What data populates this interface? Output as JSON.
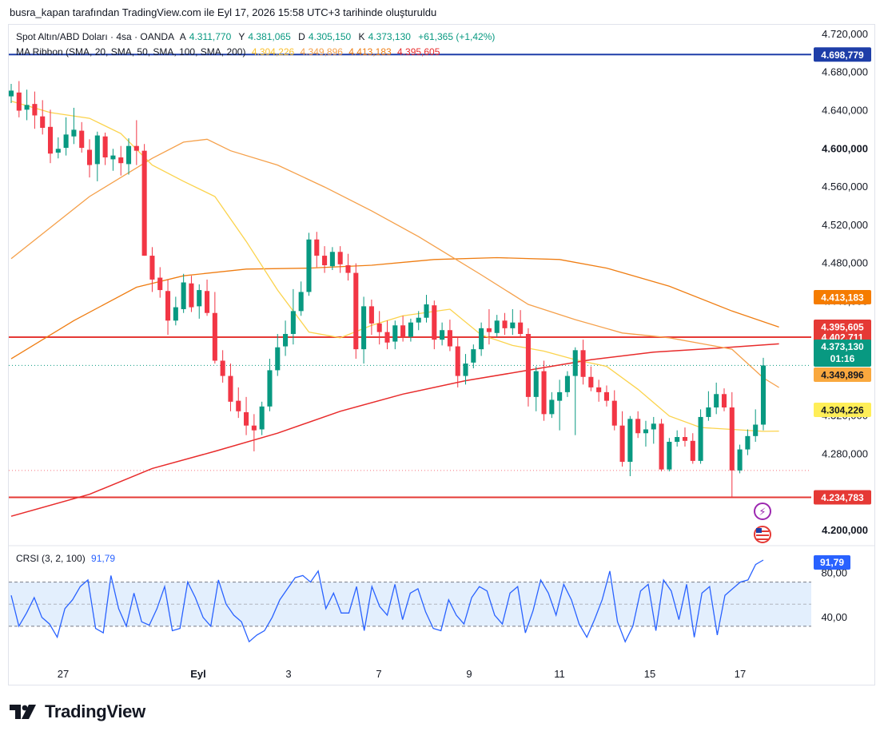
{
  "caption": "busra_kapan tarafından TradingView.com ile Eyl 17, 2026 15:58 UTC+3 tarihinde oluşturuldu",
  "legend": {
    "symbol": "Spot Altın/ABD Doları · 4sa · OANDA",
    "open_label": "A",
    "open": "4.311,770",
    "high_label": "Y",
    "high": "4.381,065",
    "low_label": "D",
    "low": "4.305,150",
    "close_label": "K",
    "close": "4.373,130",
    "change": "+61,365 (+1,42%)",
    "ma_label": "MA Ribbon (SMA, 20, SMA, 50, SMA, 100, SMA, 200)",
    "ma_values": [
      "4.304,226",
      "4.349,896",
      "4.413,183",
      "4.395,605"
    ]
  },
  "indicator": {
    "label": "CRSI (3, 2, 100)",
    "value": "91,79"
  },
  "branding": {
    "name": "TradingView"
  },
  "colors": {
    "up": "#089981",
    "down": "#f23645",
    "sma20": "#fbd34c",
    "sma50": "#f5a04a",
    "sma100": "#ef7d12",
    "sma200": "#e82b2b",
    "hline_blue": "#1e3ea8",
    "hline_red": "#e53935",
    "crsi": "#2962ff",
    "crsi_band": "#e3effd"
  },
  "chart_data": {
    "type": "candlestick",
    "y_axis": {
      "ticks": [
        "4.720,000",
        "4.680,000",
        "4.640,000",
        "4.600,000",
        "4.560,000",
        "4.520,000",
        "4.480,000",
        "4.440,000",
        "4.320,000",
        "4.280,000",
        "4.200,000"
      ],
      "bold_ticks": [
        "4.600,000",
        "4.200,000"
      ],
      "range": [
        4185,
        4730
      ]
    },
    "x_axis": {
      "ticks": [
        "27",
        "Eyl",
        "3",
        "7",
        "9",
        "11",
        "15",
        "17"
      ]
    },
    "horizontal_lines": [
      {
        "value": 4698.779,
        "label": "4.698,779",
        "color": "#1e3ea8"
      },
      {
        "value": 4402.711,
        "label": "4.402,711",
        "color": "#e53935"
      },
      {
        "value": 4234.783,
        "label": "4.234,783",
        "color": "#e53935"
      }
    ],
    "price_labels": [
      {
        "value": 4413.183,
        "label": "4.413,183",
        "bg": "#f57c00",
        "fg": "#ffffff"
      },
      {
        "value": 4395.605,
        "label": "4.395,605",
        "bg": "#e53935",
        "fg": "#ffffff"
      },
      {
        "value": 4373.13,
        "label": "4.373,130",
        "sub": "01:16",
        "bg": "#089981",
        "fg": "#ffffff"
      },
      {
        "value": 4349.896,
        "label": "4.349,896",
        "bg": "#f9a83e",
        "fg": "#131722"
      },
      {
        "value": 4304.226,
        "label": "4.304,226",
        "bg": "#ffee58",
        "fg": "#131722"
      }
    ],
    "candles": [
      [
        4655,
        4668,
        4648,
        4661
      ],
      [
        4659,
        4671,
        4633,
        4640
      ],
      [
        4641,
        4662,
        4630,
        4646
      ],
      [
        4647,
        4660,
        4621,
        4635
      ],
      [
        4634,
        4651,
        4615,
        4622
      ],
      [
        4623,
        4641,
        4585,
        4595
      ],
      [
        4596,
        4612,
        4590,
        4600
      ],
      [
        4601,
        4633,
        4593,
        4615
      ],
      [
        4613,
        4643,
        4605,
        4620
      ],
      [
        4619,
        4628,
        4596,
        4601
      ],
      [
        4599,
        4610,
        4570,
        4583
      ],
      [
        4584,
        4618,
        4566,
        4614
      ],
      [
        4613,
        4617,
        4583,
        4591
      ],
      [
        4589,
        4600,
        4577,
        4593
      ],
      [
        4591,
        4603,
        4572,
        4585
      ],
      [
        4584,
        4611,
        4573,
        4603
      ],
      [
        4603,
        4630,
        4583,
        4598
      ],
      [
        4598,
        4605,
        4488,
        4488
      ],
      [
        4488,
        4497,
        4450,
        4463
      ],
      [
        4465,
        4476,
        4444,
        4452
      ],
      [
        4451,
        4463,
        4405,
        4420
      ],
      [
        4420,
        4445,
        4415,
        4434
      ],
      [
        4432,
        4469,
        4428,
        4460
      ],
      [
        4459,
        4467,
        4429,
        4434
      ],
      [
        4435,
        4458,
        4422,
        4452
      ],
      [
        4451,
        4463,
        4425,
        4428
      ],
      [
        4428,
        4450,
        4375,
        4378
      ],
      [
        4378,
        4389,
        4355,
        4362
      ],
      [
        4362,
        4375,
        4325,
        4335
      ],
      [
        4336,
        4350,
        4318,
        4325
      ],
      [
        4324,
        4340,
        4300,
        4310
      ],
      [
        4310,
        4322,
        4283,
        4305
      ],
      [
        4306,
        4335,
        4300,
        4330
      ],
      [
        4330,
        4380,
        4325,
        4368
      ],
      [
        4368,
        4406,
        4362,
        4392
      ],
      [
        4393,
        4420,
        4383,
        4406
      ],
      [
        4406,
        4453,
        4395,
        4430
      ],
      [
        4430,
        4461,
        4425,
        4450
      ],
      [
        4450,
        4512,
        4446,
        4505
      ],
      [
        4505,
        4513,
        4476,
        4488
      ],
      [
        4488,
        4498,
        4470,
        4478
      ],
      [
        4477,
        4497,
        4473,
        4492
      ],
      [
        4492,
        4498,
        4470,
        4479
      ],
      [
        4478,
        4490,
        4462,
        4470
      ],
      [
        4470,
        4480,
        4380,
        4390
      ],
      [
        4390,
        4445,
        4375,
        4435
      ],
      [
        4435,
        4442,
        4405,
        4417
      ],
      [
        4417,
        4430,
        4395,
        4408
      ],
      [
        4408,
        4420,
        4390,
        4397
      ],
      [
        4398,
        4420,
        4390,
        4415
      ],
      [
        4415,
        4425,
        4398,
        4403
      ],
      [
        4403,
        4422,
        4398,
        4418
      ],
      [
        4418,
        4430,
        4410,
        4423
      ],
      [
        4423,
        4447,
        4418,
        4437
      ],
      [
        4436,
        4441,
        4390,
        4400
      ],
      [
        4400,
        4418,
        4394,
        4410
      ],
      [
        4410,
        4421,
        4388,
        4393
      ],
      [
        4393,
        4403,
        4350,
        4362
      ],
      [
        4362,
        4385,
        4353,
        4375
      ],
      [
        4376,
        4395,
        4370,
        4390
      ],
      [
        4390,
        4418,
        4383,
        4412
      ],
      [
        4412,
        4432,
        4395,
        4408
      ],
      [
        4407,
        4426,
        4403,
        4420
      ],
      [
        4420,
        4428,
        4405,
        4412
      ],
      [
        4412,
        4432,
        4405,
        4418
      ],
      [
        4418,
        4431,
        4403,
        4406
      ],
      [
        4406,
        4412,
        4330,
        4340
      ],
      [
        4340,
        4372,
        4325,
        4367
      ],
      [
        4367,
        4378,
        4315,
        4322
      ],
      [
        4322,
        4345,
        4318,
        4337
      ],
      [
        4336,
        4358,
        4305,
        4345
      ],
      [
        4345,
        4367,
        4340,
        4362
      ],
      [
        4362,
        4392,
        4300,
        4389
      ],
      [
        4389,
        4400,
        4353,
        4361
      ],
      [
        4361,
        4372,
        4346,
        4350
      ],
      [
        4350,
        4358,
        4335,
        4345
      ],
      [
        4345,
        4352,
        4330,
        4336
      ],
      [
        4336,
        4347,
        4305,
        4310
      ],
      [
        4310,
        4325,
        4267,
        4272
      ],
      [
        4272,
        4320,
        4257,
        4317
      ],
      [
        4317,
        4325,
        4297,
        4302
      ],
      [
        4302,
        4315,
        4288,
        4306
      ],
      [
        4306,
        4319,
        4291,
        4312
      ],
      [
        4312,
        4317,
        4262,
        4264
      ],
      [
        4264,
        4297,
        4262,
        4293
      ],
      [
        4293,
        4305,
        4288,
        4298
      ],
      [
        4298,
        4308,
        4288,
        4294
      ],
      [
        4294,
        4302,
        4270,
        4273
      ],
      [
        4273,
        4327,
        4270,
        4319
      ],
      [
        4319,
        4346,
        4315,
        4329
      ],
      [
        4329,
        4355,
        4322,
        4343
      ],
      [
        4343,
        4349,
        4325,
        4329
      ],
      [
        4329,
        4345,
        4235,
        4263
      ],
      [
        4263,
        4290,
        4260,
        4285
      ],
      [
        4285,
        4306,
        4279,
        4299
      ],
      [
        4299,
        4327,
        4293,
        4311
      ],
      [
        4311,
        4381,
        4305,
        4373
      ]
    ],
    "sma20": [
      [
        0,
        4650
      ],
      [
        5,
        4638
      ],
      [
        10,
        4632
      ],
      [
        14,
        4616
      ],
      [
        18,
        4583
      ],
      [
        22,
        4566
      ],
      [
        26,
        4550
      ],
      [
        30,
        4503
      ],
      [
        34,
        4452
      ],
      [
        38,
        4408
      ],
      [
        42,
        4402
      ],
      [
        46,
        4415
      ],
      [
        50,
        4425
      ],
      [
        56,
        4432
      ],
      [
        60,
        4405
      ],
      [
        64,
        4394
      ],
      [
        68,
        4388
      ],
      [
        72,
        4379
      ],
      [
        76,
        4372
      ],
      [
        80,
        4348
      ],
      [
        84,
        4320
      ],
      [
        88,
        4308
      ],
      [
        92,
        4306
      ],
      [
        96,
        4304
      ],
      [
        98,
        4304.2
      ]
    ],
    "sma50": [
      [
        0,
        4485
      ],
      [
        10,
        4550
      ],
      [
        18,
        4590
      ],
      [
        22,
        4607
      ],
      [
        25,
        4610
      ],
      [
        28,
        4598
      ],
      [
        34,
        4583
      ],
      [
        40,
        4560
      ],
      [
        46,
        4535
      ],
      [
        52,
        4508
      ],
      [
        56,
        4488
      ],
      [
        60,
        4468
      ],
      [
        66,
        4437
      ],
      [
        72,
        4421
      ],
      [
        78,
        4407
      ],
      [
        84,
        4402
      ],
      [
        92,
        4390
      ],
      [
        96,
        4360
      ],
      [
        98,
        4349.9
      ]
    ],
    "sma100": [
      [
        0,
        4380
      ],
      [
        8,
        4420
      ],
      [
        16,
        4455
      ],
      [
        22,
        4467
      ],
      [
        30,
        4474
      ],
      [
        38,
        4475
      ],
      [
        46,
        4478
      ],
      [
        54,
        4484
      ],
      [
        62,
        4486
      ],
      [
        70,
        4484
      ],
      [
        76,
        4475
      ],
      [
        84,
        4456
      ],
      [
        92,
        4430
      ],
      [
        98,
        4413.2
      ]
    ],
    "sma200": [
      [
        0,
        4215
      ],
      [
        10,
        4238
      ],
      [
        18,
        4265
      ],
      [
        26,
        4283
      ],
      [
        34,
        4302
      ],
      [
        42,
        4325
      ],
      [
        50,
        4343
      ],
      [
        58,
        4357
      ],
      [
        66,
        4368
      ],
      [
        74,
        4379
      ],
      [
        82,
        4387
      ],
      [
        90,
        4391
      ],
      [
        98,
        4395.6
      ]
    ],
    "crsi": {
      "ticks": [
        "80,00",
        "40,00"
      ],
      "range": [
        0,
        100
      ],
      "band": [
        32,
        72
      ],
      "mid": 52,
      "values": [
        60,
        32,
        44,
        58,
        40,
        34,
        22,
        48,
        56,
        68,
        74,
        30,
        26,
        78,
        48,
        32,
        62,
        36,
        33,
        48,
        68,
        28,
        30,
        72,
        58,
        40,
        32,
        74,
        52,
        42,
        36,
        18,
        24,
        28,
        40,
        56,
        66,
        76,
        78,
        72,
        82,
        48,
        62,
        44,
        44,
        68,
        28,
        68,
        50,
        42,
        70,
        38,
        62,
        66,
        45,
        30,
        28,
        56,
        42,
        34,
        58,
        68,
        64,
        42,
        34,
        62,
        68,
        26,
        46,
        74,
        62,
        42,
        70,
        56,
        34,
        22,
        38,
        56,
        82,
        36,
        18,
        32,
        64,
        70,
        28,
        74,
        64,
        38,
        70,
        22,
        62,
        68,
        24,
        60,
        66,
        72,
        74,
        88,
        92
      ]
    }
  }
}
